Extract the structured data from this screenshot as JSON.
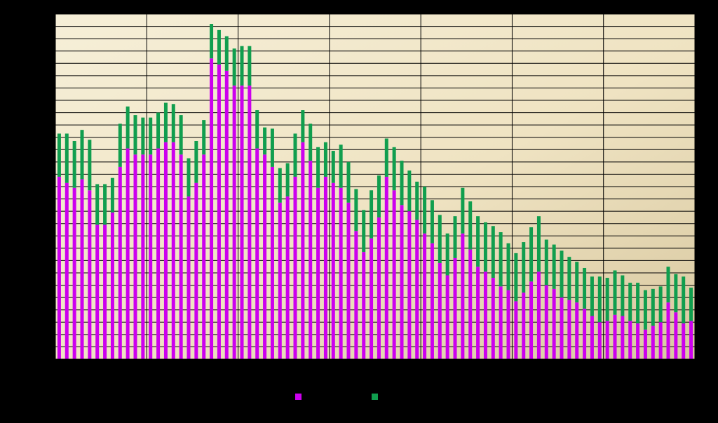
{
  "chart_data": {
    "type": "bar",
    "stacked": true,
    "title": "",
    "xlabel": "",
    "ylabel": "",
    "ylim": [
      0,
      28
    ],
    "grid": true,
    "legend_placement": "bottom-center",
    "series": [
      {
        "name": "",
        "color": "#cc00ee",
        "values": [
          14.8,
          14.3,
          13.9,
          14.6,
          13.7,
          10.9,
          10.9,
          11.9,
          15.6,
          17.1,
          16.6,
          16.6,
          16.6,
          17.1,
          17.6,
          17.6,
          16.6,
          13.2,
          14.3,
          16.6,
          24.4,
          23.9,
          23.4,
          22.2,
          22.2,
          22.2,
          17.1,
          16.6,
          15.6,
          12.7,
          13.2,
          14.8,
          17.6,
          16.1,
          13.9,
          14.8,
          14.3,
          13.9,
          12.7,
          10.4,
          8.7,
          9.8,
          11.5,
          14.8,
          13.7,
          12.5,
          12.0,
          11.3,
          10.2,
          9.4,
          7.8,
          6.8,
          8.2,
          10.2,
          8.9,
          7.5,
          7.1,
          6.6,
          5.9,
          5.6,
          4.7,
          5.4,
          6.3,
          7.1,
          6.0,
          5.7,
          5.0,
          4.8,
          4.6,
          4.1,
          3.5,
          3.0,
          3.1,
          3.6,
          3.5,
          3.1,
          2.9,
          2.4,
          2.7,
          3.0,
          4.6,
          3.8,
          2.9,
          3.1
        ]
      },
      {
        "name": "",
        "color": "#109e4e",
        "values": [
          3.5,
          4.0,
          3.8,
          4.0,
          4.1,
          3.3,
          3.3,
          2.8,
          3.5,
          3.4,
          3.2,
          3.0,
          3.0,
          2.9,
          3.2,
          3.1,
          3.2,
          3.1,
          3.4,
          2.8,
          2.8,
          2.8,
          2.8,
          3.0,
          3.2,
          3.2,
          3.1,
          2.2,
          3.1,
          2.8,
          2.7,
          3.5,
          2.6,
          3.0,
          3.3,
          2.8,
          2.6,
          3.5,
          3.3,
          3.4,
          3.4,
          3.9,
          3.4,
          3.1,
          3.5,
          3.6,
          3.3,
          3.1,
          3.8,
          3.5,
          3.9,
          3.4,
          3.4,
          3.7,
          3.9,
          4.1,
          4.0,
          4.2,
          4.4,
          3.8,
          3.9,
          4.1,
          4.4,
          4.5,
          3.7,
          3.6,
          3.8,
          3.5,
          3.3,
          3.3,
          3.2,
          3.7,
          3.5,
          3.6,
          3.3,
          3.1,
          3.3,
          3.2,
          3.0,
          2.9,
          2.9,
          3.1,
          3.8,
          2.7
        ]
      }
    ]
  }
}
